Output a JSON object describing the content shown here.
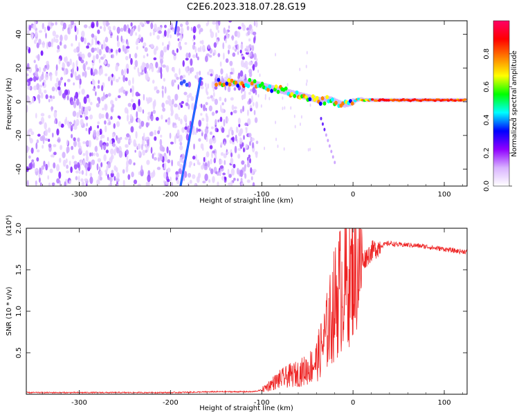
{
  "figure_title": "C2E6.2023.318.07.28.G19",
  "chart_data": [
    {
      "type": "heatmap",
      "title": "",
      "xlabel": "Height of straight line (km)",
      "ylabel": "Frequency (Hz)",
      "xlim": [
        -358,
        125
      ],
      "ylim": [
        -50,
        48
      ],
      "x_ticks": [
        -300,
        -200,
        -100,
        0,
        100
      ],
      "y_ticks": [
        -40,
        -20,
        0,
        20,
        40
      ],
      "colorbar": {
        "label": "Normalized spectral amplitude",
        "range": [
          0.0,
          1.0
        ],
        "ticks": [
          "0.0",
          "0.2",
          "0.4",
          "0.6",
          "0.8"
        ],
        "colors": [
          "#ffffff",
          "#d9b3ff",
          "#8f00ff",
          "#0000ff",
          "#00ffff",
          "#00ff00",
          "#ffff00",
          "#ff8000",
          "#ff0000",
          "#ff0066"
        ]
      },
      "features": [
        {
          "name": "noise",
          "x": [
            -358,
            -105
          ],
          "y": [
            -50,
            48
          ],
          "amplitude": 0.1
        },
        {
          "name": "streak",
          "x": [
            -189,
            -167
          ],
          "y": [
            -50,
            14
          ],
          "amplitude": 0.25
        },
        {
          "name": "signal",
          "x": [
            -150,
            125
          ],
          "y": [
            11,
            1
          ],
          "amplitude": 0.85
        },
        {
          "name": "branch",
          "x": [
            -35,
            -20
          ],
          "y": [
            -10,
            -36
          ],
          "amplitude": 0.15
        }
      ]
    },
    {
      "type": "line",
      "title": "",
      "xlabel": "Height of straight line (km)",
      "ylabel": "SNR (10 * v/v)",
      "y_multiplier": "(x10⁴)",
      "xlim": [
        -358,
        125
      ],
      "ylim": [
        0,
        2.0
      ],
      "x_ticks": [
        -300,
        -200,
        -100,
        0,
        100
      ],
      "y_ticks": [
        "0.5",
        "1.0",
        "1.5",
        "2.0"
      ],
      "series": [
        {
          "color": "#ee2222",
          "x": [
            -358,
            -300,
            -250,
            -200,
            -150,
            -110,
            -100,
            -90,
            -80,
            -70,
            -60,
            -50,
            -40,
            -35,
            -30,
            -25,
            -20,
            -15,
            -10,
            -5,
            0,
            10,
            20,
            30,
            40,
            50,
            60,
            70,
            80,
            90,
            100,
            110,
            120,
            125
          ],
          "values": [
            0.02,
            0.02,
            0.02,
            0.02,
            0.03,
            0.03,
            0.05,
            0.12,
            0.18,
            0.22,
            0.25,
            0.3,
            0.4,
            0.55,
            0.7,
            0.9,
            1.1,
            1.25,
            1.3,
            1.35,
            1.45,
            1.6,
            1.72,
            1.79,
            1.82,
            1.8,
            1.8,
            1.79,
            1.78,
            1.76,
            1.75,
            1.73,
            1.72,
            1.72
          ]
        }
      ]
    }
  ]
}
